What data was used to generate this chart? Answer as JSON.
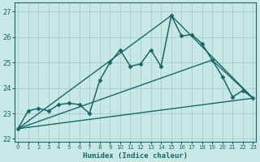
{
  "xlabel": "Humidex (Indice chaleur)",
  "ylabel": "",
  "xlim": [
    -0.3,
    23.3
  ],
  "ylim": [
    21.9,
    27.35
  ],
  "yticks": [
    22,
    23,
    24,
    25,
    26,
    27
  ],
  "xticks": [
    0,
    1,
    2,
    3,
    4,
    5,
    6,
    7,
    8,
    9,
    10,
    11,
    12,
    13,
    14,
    15,
    16,
    17,
    18,
    19,
    20,
    21,
    22,
    23
  ],
  "background_color": "#c8e8e8",
  "grid_color": "#a0c8c8",
  "line_color": "#1a6666",
  "lines": [
    {
      "x": [
        0,
        1,
        2,
        3,
        4,
        5,
        6,
        7,
        8,
        9,
        10,
        11,
        12,
        13,
        14,
        15,
        16,
        17,
        18,
        19,
        20,
        21,
        22,
        23
      ],
      "y": [
        22.4,
        23.1,
        23.2,
        23.1,
        23.35,
        23.4,
        23.35,
        23.0,
        24.3,
        25.0,
        25.5,
        24.85,
        24.95,
        25.5,
        24.85,
        26.85,
        26.05,
        26.1,
        25.75,
        25.1,
        24.45,
        23.65,
        23.9,
        23.6
      ],
      "marker": "D",
      "markersize": 2.5,
      "linewidth": 1.1,
      "zorder": 5
    },
    {
      "x": [
        0,
        23
      ],
      "y": [
        22.4,
        23.6
      ],
      "marker": null,
      "linewidth": 1.0,
      "zorder": 3
    },
    {
      "x": [
        0,
        19,
        23
      ],
      "y": [
        22.4,
        25.1,
        23.6
      ],
      "marker": null,
      "linewidth": 1.0,
      "zorder": 3
    },
    {
      "x": [
        0,
        15,
        23
      ],
      "y": [
        22.4,
        26.85,
        23.6
      ],
      "marker": null,
      "linewidth": 1.0,
      "zorder": 3
    }
  ]
}
